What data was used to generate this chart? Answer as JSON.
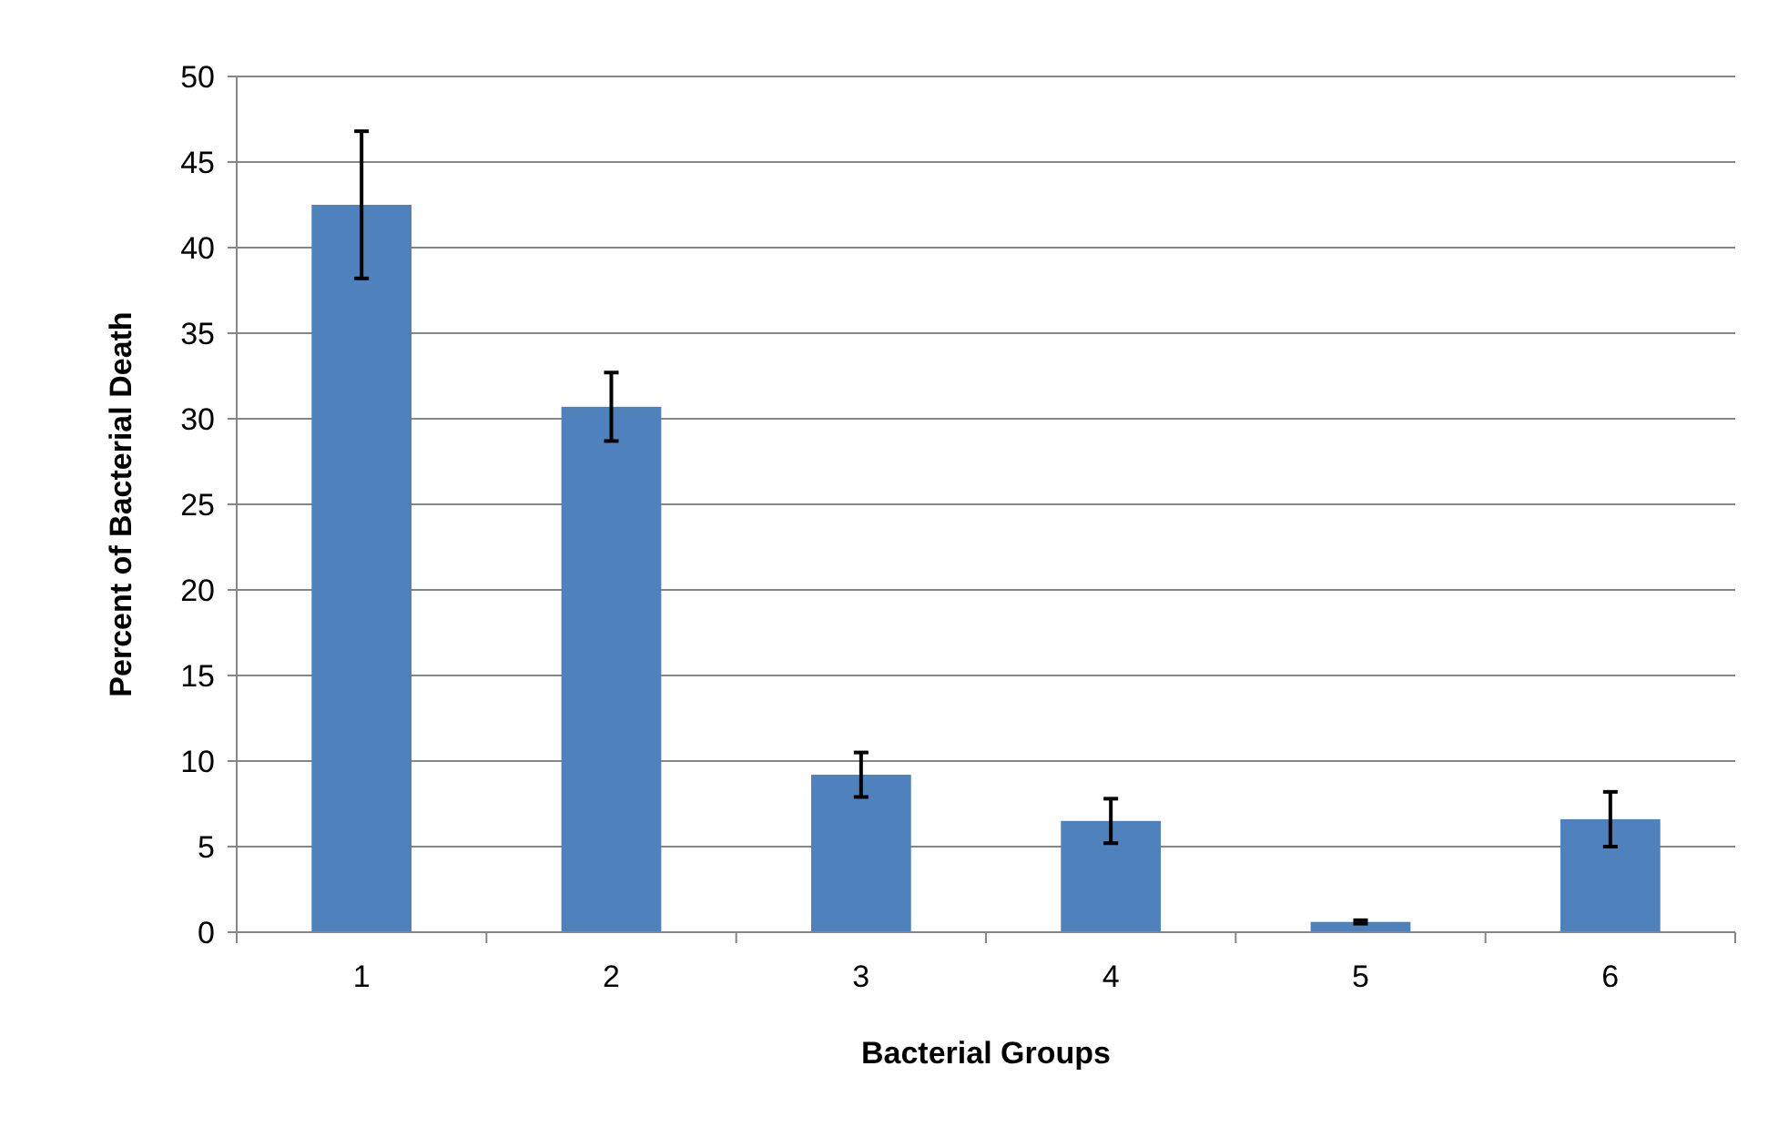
{
  "chart_data": {
    "type": "bar",
    "xlabel": "Bacterial Groups",
    "ylabel": "Percent of Bacterial Death",
    "categories": [
      "1",
      "2",
      "3",
      "4",
      "5",
      "6"
    ],
    "values": [
      42.5,
      30.7,
      9.2,
      6.5,
      0.6,
      6.6
    ],
    "errors": [
      4.3,
      2,
      1.3,
      1.3,
      0.1,
      1.6
    ],
    "color": "#4f81bd",
    "ylim": [
      0,
      50
    ],
    "yticks": [
      0,
      5,
      10,
      15,
      20,
      25,
      30,
      35,
      40,
      45,
      50
    ],
    "grid": "y"
  }
}
